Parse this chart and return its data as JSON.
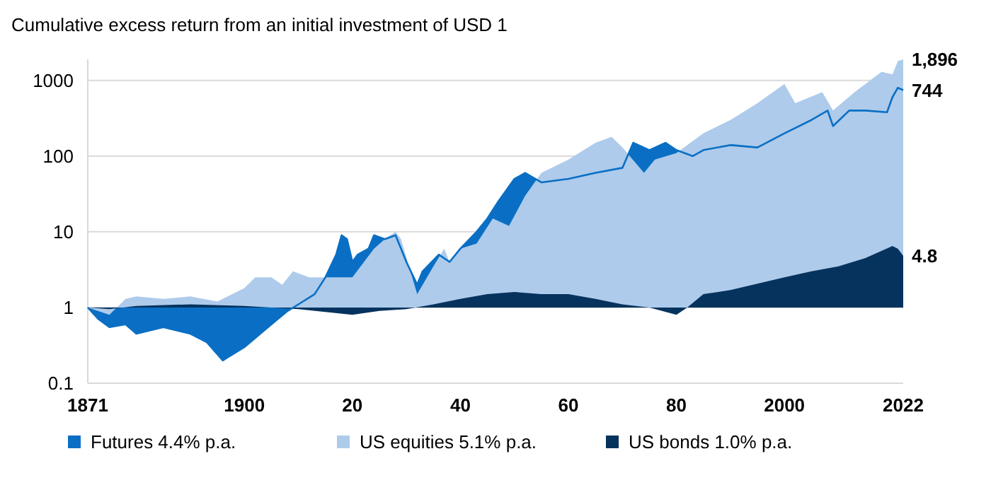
{
  "chart_data": {
    "type": "area",
    "title": "Cumulative excess return from an initial investment of USD 1",
    "log": true,
    "grid": "y",
    "legend": "bottom",
    "ylim": [
      0.1,
      1896
    ],
    "yticks": [
      0.1,
      1,
      10,
      100,
      1000
    ],
    "xlim": [
      1871,
      2022
    ],
    "xticks": [
      1871,
      1900,
      {
        "value": 1920,
        "label": "20"
      },
      {
        "value": 1940,
        "label": "40"
      },
      {
        "value": 1960,
        "label": "60"
      },
      {
        "value": 1980,
        "label": "80"
      },
      2000,
      2022
    ],
    "series": [
      {
        "name": "Futures 4.4% p.a.",
        "color": "#0a6fc4",
        "x": [
          1871,
          1873,
          1875,
          1878,
          1880,
          1885,
          1890,
          1893,
          1896,
          1900,
          1905,
          1908,
          1910,
          1913,
          1915,
          1917,
          1918,
          1919,
          1920,
          1921,
          1923,
          1924,
          1926,
          1928,
          1930,
          1932,
          1933,
          1936,
          1938,
          1940,
          1943,
          1945,
          1947,
          1950,
          1952,
          1955,
          1960,
          1965,
          1970,
          1972,
          1975,
          1978,
          1980,
          1983,
          1985,
          1990,
          1995,
          2000,
          2005,
          2008,
          2009,
          2012,
          2015,
          2019,
          2020,
          2021,
          2022
        ],
        "values": [
          1,
          0.7,
          0.55,
          0.6,
          0.45,
          0.55,
          0.45,
          0.35,
          0.2,
          0.3,
          0.6,
          0.9,
          1.1,
          1.5,
          2.5,
          5,
          9,
          8,
          4,
          5,
          6,
          9,
          8,
          9,
          4,
          2,
          3,
          5,
          4,
          6,
          10,
          15,
          25,
          50,
          60,
          45,
          50,
          60,
          70,
          150,
          120,
          150,
          120,
          100,
          120,
          140,
          130,
          200,
          300,
          400,
          250,
          400,
          400,
          380,
          600,
          800,
          744
        ],
        "value_labels": [
          null,
          null,
          null,
          null,
          null,
          null,
          null,
          null,
          null,
          null,
          null,
          null,
          null,
          null,
          null,
          null,
          null,
          null,
          null,
          null,
          null,
          null,
          null,
          null,
          null,
          null,
          null,
          null,
          null,
          null,
          null,
          null,
          null,
          null,
          null,
          null,
          null,
          null,
          null,
          null,
          null,
          null,
          null,
          null,
          null,
          null,
          null,
          null,
          null,
          null,
          null,
          null,
          null,
          null,
          null,
          null,
          "744"
        ]
      },
      {
        "name": "US equities 5.1% p.a.",
        "color": "#aecbeb",
        "x": [
          1871,
          1875,
          1878,
          1880,
          1885,
          1890,
          1895,
          1900,
          1902,
          1905,
          1907,
          1909,
          1912,
          1915,
          1918,
          1920,
          1924,
          1926,
          1928,
          1929,
          1932,
          1935,
          1937,
          1938,
          1940,
          1943,
          1946,
          1949,
          1952,
          1955,
          1960,
          1965,
          1968,
          1970,
          1974,
          1976,
          1980,
          1985,
          1990,
          1995,
          2000,
          2002,
          2007,
          2009,
          2013,
          2018,
          2020,
          2021,
          2022
        ],
        "values": [
          1,
          0.8,
          1.3,
          1.4,
          1.3,
          1.4,
          1.2,
          1.8,
          2.5,
          2.5,
          2,
          3,
          2.5,
          2.5,
          2.5,
          2.5,
          6,
          8,
          10,
          8,
          1.5,
          3.5,
          6,
          4,
          6,
          7,
          15,
          12,
          30,
          60,
          90,
          150,
          180,
          130,
          60,
          90,
          110,
          200,
          300,
          500,
          900,
          500,
          700,
          400,
          700,
          1300,
          1200,
          1800,
          1896
        ],
        "value_labels": [
          null,
          null,
          null,
          null,
          null,
          null,
          null,
          null,
          null,
          null,
          null,
          null,
          null,
          null,
          null,
          null,
          null,
          null,
          null,
          null,
          null,
          null,
          null,
          null,
          null,
          null,
          null,
          null,
          null,
          null,
          null,
          null,
          null,
          null,
          null,
          null,
          null,
          null,
          null,
          null,
          null,
          null,
          null,
          null,
          null,
          null,
          null,
          null,
          "1,896"
        ]
      },
      {
        "name": "US bonds 1.0% p.a.",
        "color": "#06335e",
        "x": [
          1871,
          1875,
          1880,
          1890,
          1900,
          1905,
          1910,
          1920,
          1925,
          1930,
          1935,
          1940,
          1945,
          1950,
          1955,
          1960,
          1965,
          1970,
          1975,
          1980,
          1982,
          1985,
          1990,
          2000,
          2005,
          2010,
          2015,
          2020,
          2021,
          2022
        ],
        "values": [
          1,
          0.95,
          1.05,
          1.1,
          1.05,
          1,
          0.95,
          0.8,
          0.9,
          0.95,
          1.1,
          1.3,
          1.5,
          1.6,
          1.5,
          1.5,
          1.3,
          1.1,
          1,
          0.8,
          1,
          1.5,
          1.7,
          2.5,
          3,
          3.5,
          4.5,
          6.5,
          6,
          4.8
        ],
        "value_labels": [
          null,
          null,
          null,
          null,
          null,
          null,
          null,
          null,
          null,
          null,
          null,
          null,
          null,
          null,
          null,
          null,
          null,
          null,
          null,
          null,
          null,
          null,
          null,
          null,
          null,
          null,
          null,
          null,
          null,
          "4.8"
        ]
      }
    ]
  }
}
